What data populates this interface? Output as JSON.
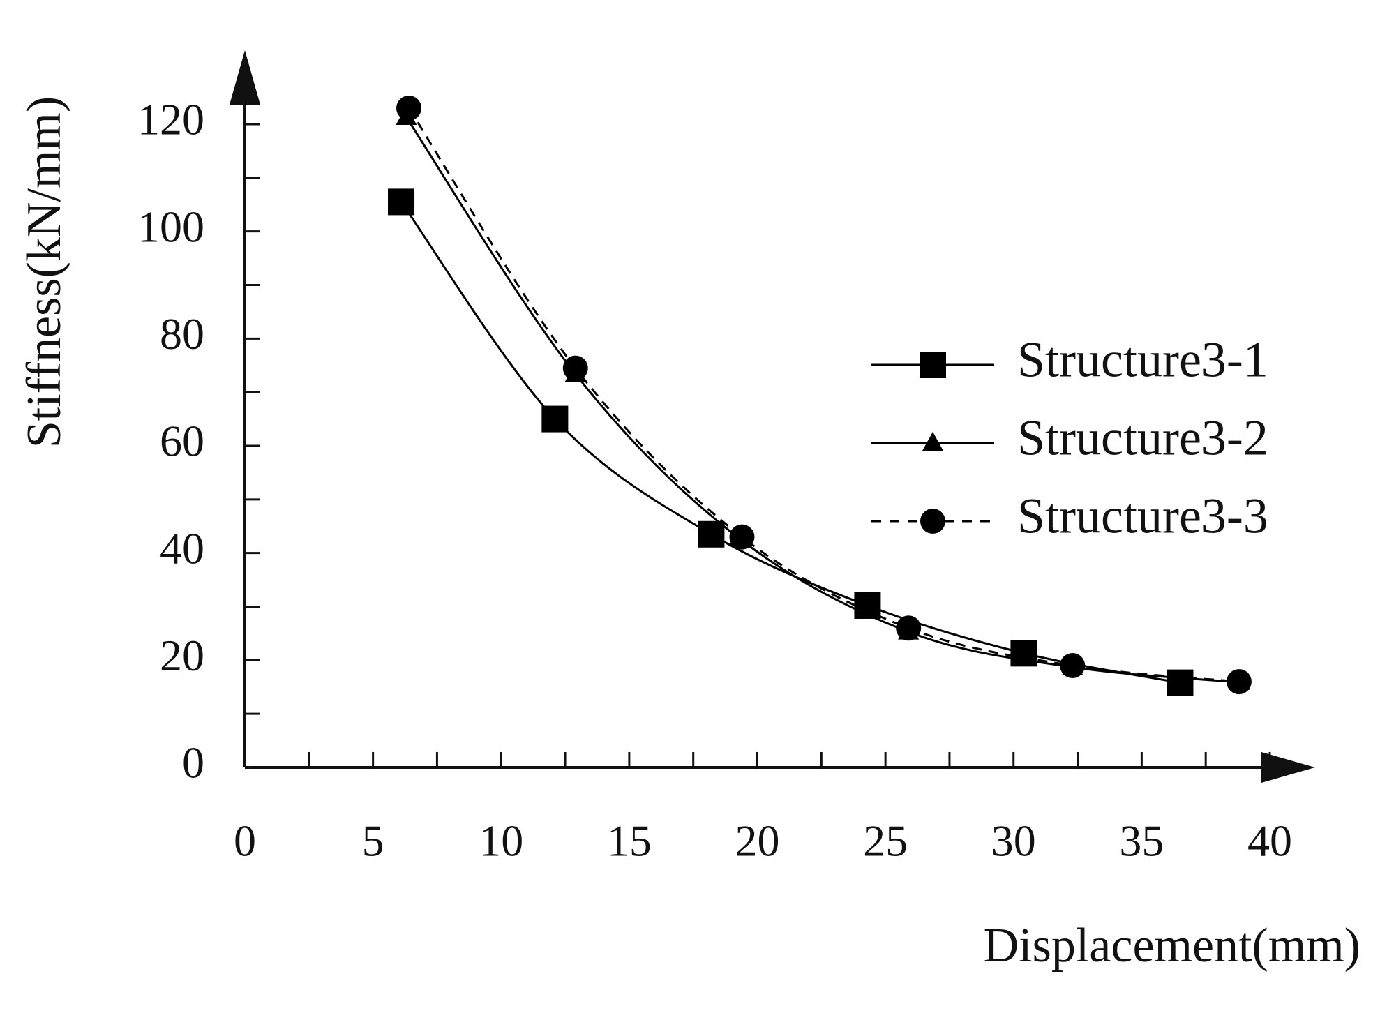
{
  "chart_data": {
    "type": "line",
    "x_label": "Displacement(mm)",
    "y_label": "Stiffness(kN/mm)",
    "xlim": [
      0,
      40
    ],
    "ylim": [
      0,
      120
    ],
    "xticks": [
      0,
      5,
      10,
      15,
      20,
      25,
      30,
      35,
      40
    ],
    "yticks": [
      0,
      20,
      40,
      60,
      80,
      100,
      120
    ],
    "legend": "right",
    "series": [
      {
        "name": "Structure3-1",
        "color": "#000000",
        "marker": "square",
        "linestyle": "solid",
        "x": [
          6.1,
          12.1,
          18.2,
          24.3,
          30.4,
          36.5
        ],
        "values": [
          105.5,
          65,
          43.5,
          30.2,
          21.3,
          15.8
        ]
      },
      {
        "name": "Structure3-2",
        "color": "#000000",
        "marker": "triangle",
        "linestyle": "solid",
        "x": [
          6.3,
          12.9,
          19.3,
          25.9,
          32.3,
          38.8
        ],
        "values": [
          121.3,
          73.4,
          42.7,
          25.3,
          18.7,
          15.9
        ]
      },
      {
        "name": "Structure3-3",
        "color": "#000000",
        "marker": "circle",
        "linestyle": "dashed",
        "x": [
          6.4,
          12.9,
          19.4,
          25.9,
          32.3,
          38.8
        ],
        "values": [
          123,
          74.5,
          43,
          26,
          19,
          16
        ]
      }
    ]
  }
}
